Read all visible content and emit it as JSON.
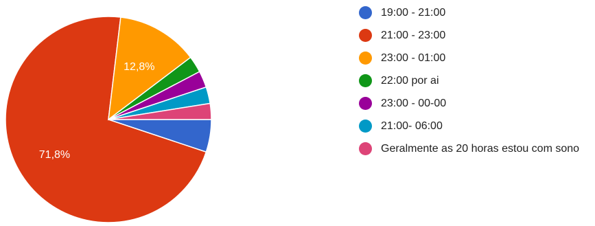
{
  "chart_data": {
    "type": "pie",
    "slices": [
      {
        "label": "19:00 - 21:00",
        "value": 5.1,
        "color": "#3366cc",
        "display": ""
      },
      {
        "label": "21:00 - 23:00",
        "value": 71.8,
        "color": "#dc3912",
        "display": "71,8%"
      },
      {
        "label": "23:00 - 01:00",
        "value": 12.8,
        "color": "#ff9900",
        "display": "12,8%"
      },
      {
        "label": "22:00 por ai",
        "value": 2.6,
        "color": "#109618",
        "display": ""
      },
      {
        "label": "23:00 - 00-00",
        "value": 2.6,
        "color": "#990099",
        "display": ""
      },
      {
        "label": "21:00- 06:00",
        "value": 2.6,
        "color": "#0099c6",
        "display": ""
      },
      {
        "label": "Geralmente as 20 horas estou com sono",
        "value": 2.5,
        "color": "#dd4477",
        "display": ""
      }
    ],
    "legend_position": "right"
  }
}
